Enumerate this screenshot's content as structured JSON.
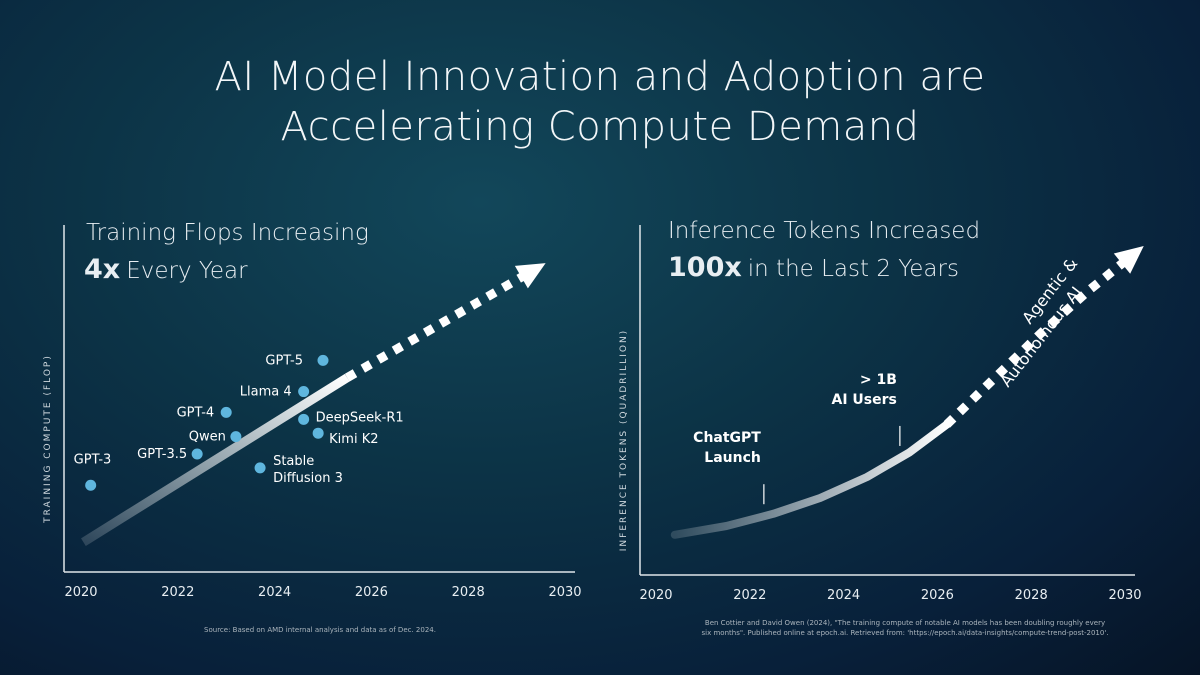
{
  "slide": {
    "title_line1": "AI Model Innovation and Adoption are",
    "title_line2": "Accelerating Compute Demand",
    "footnote_left": "Source: Based on AMD internal analysis and data as of Dec. 2024.",
    "footnote_right_1": "Ben Cottier and David Owen (2024), \"The training compute of notable AI models has been doubling roughly every",
    "footnote_right_2": "six months\". Published online at epoch.ai. Retrieved from: 'https://epoch.ai/data-insights/compute-trend-post-2010'."
  },
  "colors": {
    "point": "#5fb6de",
    "trend": "#ffffff",
    "axis": "#dfe6ea"
  },
  "chart_data": [
    {
      "type": "scatter",
      "title": "Training Flops Increasing",
      "subtitle_bold": "4x",
      "subtitle_rest": "Every Year",
      "ylabel": "TRAINING COMPUTE (FLOP)",
      "xticks": [
        "2020",
        "2022",
        "2024",
        "2026",
        "2028",
        "2030"
      ],
      "xlim": [
        2020,
        2030
      ],
      "ylim": [
        0,
        100
      ],
      "grid": false,
      "points": [
        {
          "label": "GPT-3",
          "x": 2020.2,
          "y": 25
        },
        {
          "label": "GPT-3.5",
          "x": 2022.4,
          "y": 34
        },
        {
          "label": "Qwen",
          "x": 2023.2,
          "y": 39
        },
        {
          "label": "GPT-4",
          "x": 2023.0,
          "y": 46
        },
        {
          "label": "Llama 4",
          "x": 2024.6,
          "y": 52
        },
        {
          "label": "GPT-5",
          "x": 2025.0,
          "y": 61
        },
        {
          "label": "DeepSeek-R1",
          "x": 2024.6,
          "y": 44
        },
        {
          "label": "Kimi K2",
          "x": 2024.9,
          "y": 40
        },
        {
          "label": "Stable Diffusion 3",
          "x": 2023.7,
          "y": 30
        }
      ],
      "trend_solid": [
        [
          2020.05,
          8.6
        ],
        [
          2025.5,
          56
        ]
      ],
      "trend_projected": [
        [
          2025.5,
          56
        ],
        [
          2029.6,
          89
        ]
      ]
    },
    {
      "type": "line",
      "title": "Inference Tokens Increased",
      "subtitle_bold": "100x",
      "subtitle_rest": "in the Last 2 Years",
      "ylabel": "INFERENCE TOKENS (QUADRILLION)",
      "xticks": [
        "2020",
        "2022",
        "2024",
        "2026",
        "2028",
        "2030"
      ],
      "xlim": [
        2020,
        2030
      ],
      "ylim": [
        0,
        100
      ],
      "grid": false,
      "curve_solid": [
        [
          2020.4,
          11.5
        ],
        [
          2021.5,
          14
        ],
        [
          2022.5,
          17.5
        ],
        [
          2023.5,
          22
        ],
        [
          2024.5,
          28
        ],
        [
          2025.4,
          35
        ],
        [
          2026.2,
          43
        ]
      ],
      "curve_projected": [
        [
          2026.2,
          43
        ],
        [
          2027.2,
          56
        ],
        [
          2028.2,
          69
        ],
        [
          2029.2,
          81
        ],
        [
          2030.4,
          94
        ]
      ],
      "annotations": [
        {
          "text1": "ChatGPT",
          "text2": "Launch",
          "x": 2022.3
        },
        {
          "text1": "> 1B",
          "text2": "AI Users",
          "x": 2025.2
        }
      ],
      "projection_label_1": "Agentic &",
      "projection_label_2": "Autonomous AI"
    }
  ]
}
